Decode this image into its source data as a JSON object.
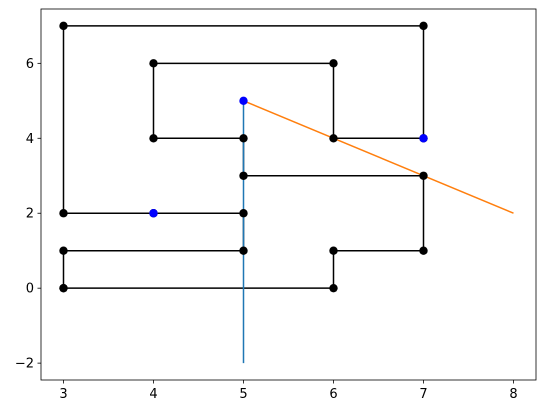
{
  "chart_data": {
    "type": "line",
    "xlim": [
      2.75,
      8.25
    ],
    "ylim": [
      -2.45,
      7.45
    ],
    "xticks": [
      3,
      4,
      5,
      6,
      7,
      8
    ],
    "yticks": [
      {
        "value": -2,
        "label": "−2"
      },
      0,
      2,
      4,
      6
    ],
    "series": [
      {
        "color": "#000000",
        "marker": true,
        "line": true,
        "x": [
          3,
          6,
          6,
          7,
          7,
          5,
          5,
          4,
          4,
          6,
          6,
          7,
          7,
          3,
          3,
          4,
          5,
          5,
          3,
          3
        ],
        "y": [
          0,
          0,
          1,
          1,
          3,
          3,
          4,
          4,
          6,
          6,
          4,
          4,
          7,
          7,
          2,
          2,
          2,
          1,
          1,
          0
        ]
      },
      {
        "color": "#1f77b4",
        "marker": false,
        "line": true,
        "x": [
          5,
          5
        ],
        "y": [
          5,
          -2
        ]
      },
      {
        "color": "#ff7f0e",
        "marker": false,
        "line": true,
        "x": [
          5,
          8
        ],
        "y": [
          5,
          2
        ]
      },
      {
        "color": "#0000ff",
        "marker": true,
        "line": false,
        "x": [
          5,
          7,
          4
        ],
        "y": [
          5,
          4,
          2
        ]
      }
    ]
  }
}
